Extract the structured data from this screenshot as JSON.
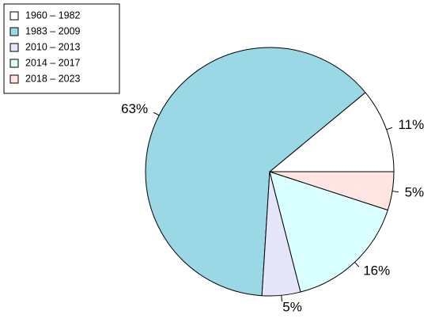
{
  "chart_data": {
    "type": "pie",
    "categories": [
      "1960 – 1982",
      "1983 – 2009",
      "2010 – 2013",
      "2014 – 2017",
      "2018 – 2023"
    ],
    "values": [
      11,
      63,
      5,
      16,
      5
    ],
    "labels": [
      "11%",
      "63%",
      "5%",
      "16%",
      "5%"
    ],
    "colors": [
      "#ffffff",
      "#9ad8e6",
      "#e6e6fa",
      "#d9ffff",
      "#ffe4e1"
    ],
    "legend_position": "top-left",
    "title": "",
    "xlabel": "",
    "ylabel": ""
  }
}
